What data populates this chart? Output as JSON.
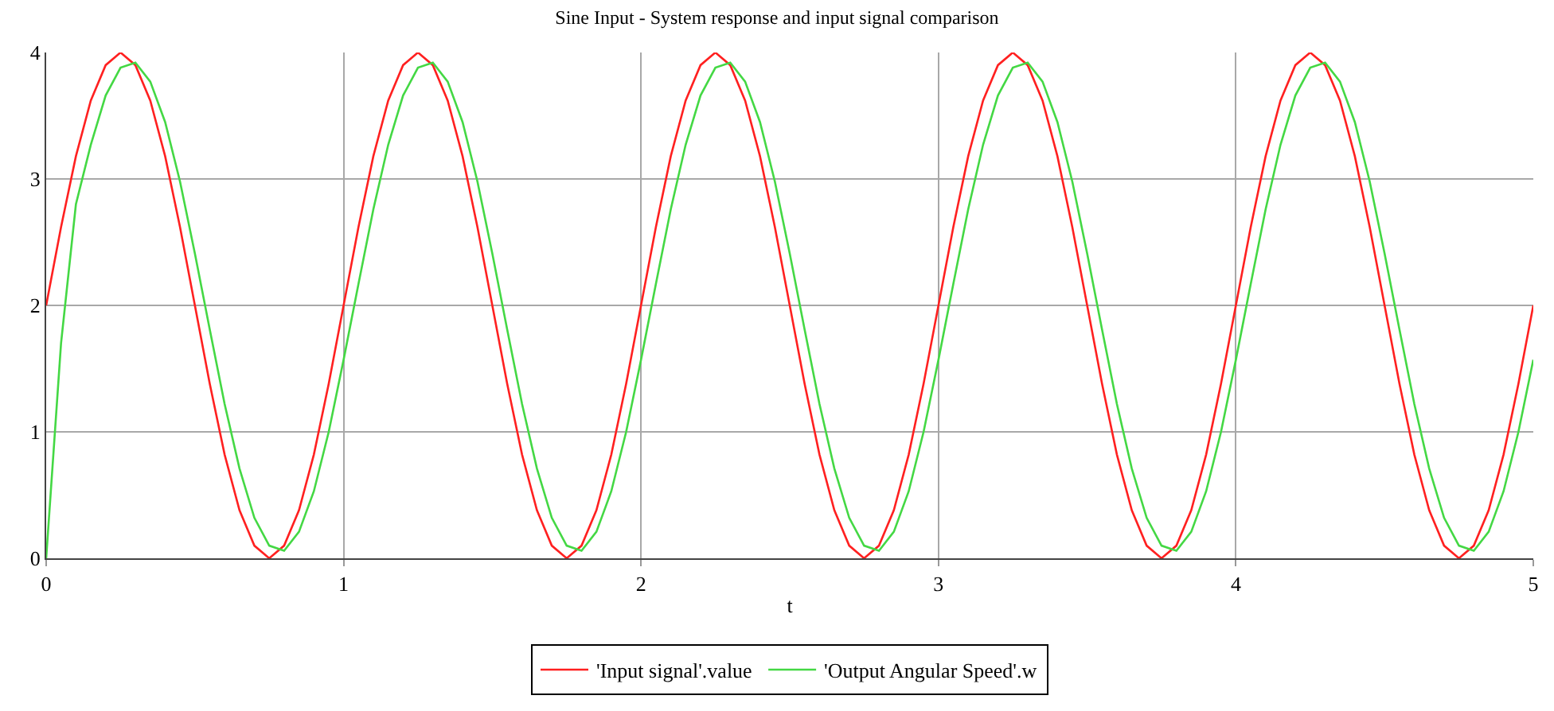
{
  "chart_data": {
    "type": "line",
    "title": "Sine Input - System response and input signal comparison",
    "xlabel": "t",
    "x": [
      0,
      0.05,
      0.1,
      0.15,
      0.2,
      0.25,
      0.3,
      0.35,
      0.4,
      0.45,
      0.5,
      0.55,
      0.6,
      0.65,
      0.7,
      0.75,
      0.8,
      0.85,
      0.9,
      0.95,
      1,
      1.05,
      1.1,
      1.15,
      1.2,
      1.25,
      1.3,
      1.35,
      1.4,
      1.45,
      1.5,
      1.55,
      1.6,
      1.65,
      1.7,
      1.75,
      1.8,
      1.85,
      1.9,
      1.95,
      2,
      2.05,
      2.1,
      2.15,
      2.2,
      2.25,
      2.3,
      2.35,
      2.4,
      2.45,
      2.5,
      2.55,
      2.6,
      2.65,
      2.7,
      2.75,
      2.8,
      2.85,
      2.9,
      2.95,
      3,
      3.05,
      3.1,
      3.15,
      3.2,
      3.25,
      3.3,
      3.35,
      3.4,
      3.45,
      3.5,
      3.55,
      3.6,
      3.65,
      3.7,
      3.75,
      3.8,
      3.85,
      3.9,
      3.95,
      4,
      4.05,
      4.1,
      4.15,
      4.2,
      4.25,
      4.3,
      4.35,
      4.4,
      4.45,
      4.5,
      4.55,
      4.6,
      4.65,
      4.7,
      4.75,
      4.8,
      4.85,
      4.9,
      4.95,
      5
    ],
    "series": [
      {
        "name": "'Input signal'.value",
        "color": "#ff2020",
        "values": [
          2,
          2.62,
          3.18,
          3.62,
          3.9,
          4,
          3.9,
          3.62,
          3.18,
          2.62,
          2,
          1.38,
          0.82,
          0.38,
          0.1,
          0,
          0.1,
          0.38,
          0.82,
          1.38,
          2,
          2.62,
          3.18,
          3.62,
          3.9,
          4,
          3.9,
          3.62,
          3.18,
          2.62,
          2,
          1.38,
          0.82,
          0.38,
          0.1,
          0,
          0.1,
          0.38,
          0.82,
          1.38,
          2,
          2.62,
          3.18,
          3.62,
          3.9,
          4,
          3.9,
          3.62,
          3.18,
          2.62,
          2,
          1.38,
          0.82,
          0.38,
          0.1,
          0,
          0.1,
          0.38,
          0.82,
          1.38,
          2,
          2.62,
          3.18,
          3.62,
          3.9,
          4,
          3.9,
          3.62,
          3.18,
          2.62,
          2,
          1.38,
          0.82,
          0.38,
          0.1,
          0,
          0.1,
          0.38,
          0.82,
          1.38,
          2,
          2.62,
          3.18,
          3.62,
          3.9,
          4,
          3.9,
          3.62,
          3.18,
          2.62,
          2,
          1.38,
          0.82,
          0.38,
          0.1,
          0,
          0.1,
          0.38,
          0.82,
          1.38,
          2
        ]
      },
      {
        "name": "'Output Angular Speed'.w",
        "color": "#44d844",
        "values": [
          0,
          1.7,
          2.8,
          3.27,
          3.66,
          3.88,
          3.92,
          3.77,
          3.45,
          2.98,
          2.41,
          1.81,
          1.22,
          0.71,
          0.32,
          0.1,
          0.06,
          0.21,
          0.53,
          1,
          1.57,
          2.17,
          2.76,
          3.27,
          3.66,
          3.88,
          3.92,
          3.77,
          3.45,
          2.98,
          2.41,
          1.81,
          1.22,
          0.71,
          0.32,
          0.1,
          0.06,
          0.21,
          0.53,
          1,
          1.57,
          2.17,
          2.76,
          3.27,
          3.66,
          3.88,
          3.92,
          3.77,
          3.45,
          2.98,
          2.41,
          1.81,
          1.22,
          0.71,
          0.32,
          0.1,
          0.06,
          0.21,
          0.53,
          1,
          1.57,
          2.17,
          2.76,
          3.27,
          3.66,
          3.88,
          3.92,
          3.77,
          3.45,
          2.98,
          2.41,
          1.81,
          1.22,
          0.71,
          0.32,
          0.1,
          0.06,
          0.21,
          0.53,
          1,
          1.57,
          2.17,
          2.76,
          3.27,
          3.66,
          3.88,
          3.92,
          3.77,
          3.45,
          2.98,
          2.41,
          1.81,
          1.22,
          0.71,
          0.32,
          0.1,
          0.06,
          0.21,
          0.53,
          1,
          1.57
        ]
      }
    ],
    "xlim": [
      0,
      5
    ],
    "xticks": [
      0,
      1,
      2,
      3,
      4,
      5
    ],
    "ylim": [
      0,
      4
    ],
    "yticks": [
      0,
      1,
      2,
      3,
      4
    ],
    "grid": true,
    "legend": "bottom",
    "marker": "none",
    "line_style": "solid"
  }
}
